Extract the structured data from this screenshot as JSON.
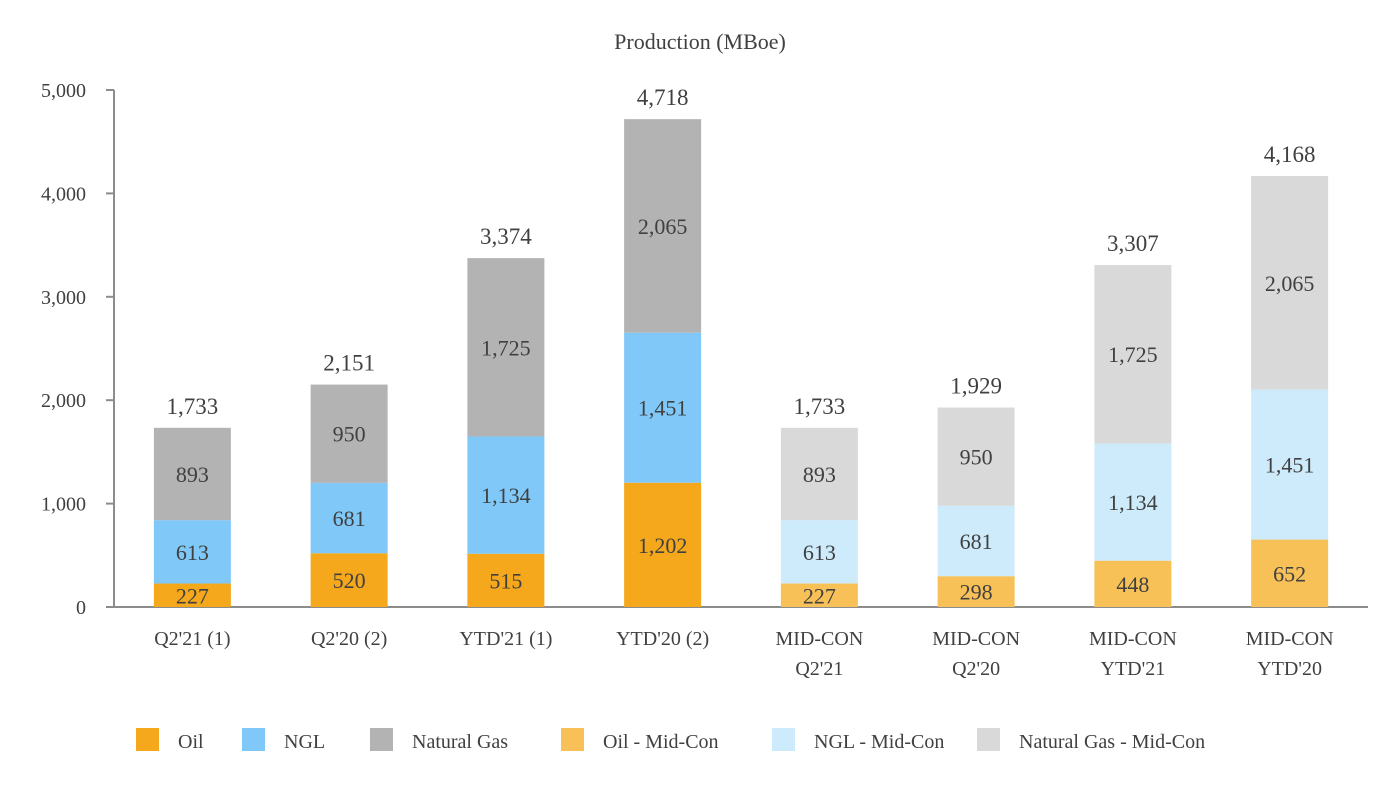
{
  "chart_data": {
    "type": "bar",
    "stacked": true,
    "title": "Production (MBoe)",
    "xlabel": "",
    "ylabel": "",
    "ylim": [
      0,
      5000
    ],
    "yticks": [
      0,
      1000,
      2000,
      3000,
      4000,
      5000
    ],
    "ytick_labels": [
      "0",
      "1,000",
      "2,000",
      "3,000",
      "4,000",
      "5,000"
    ],
    "grid": false,
    "legend_position": "bottom",
    "categories": [
      [
        "Q2'21 (1)"
      ],
      [
        "Q2'20 (2)"
      ],
      [
        "YTD'21 (1)"
      ],
      [
        "YTD'20 (2)"
      ],
      [
        "MID-CON",
        "Q2'21"
      ],
      [
        "MID-CON",
        "Q2'20"
      ],
      [
        "MID-CON",
        "YTD'21"
      ],
      [
        "MID-CON",
        "YTD'20"
      ]
    ],
    "series": [
      {
        "name": "Oil",
        "color": "#F5A81C",
        "values": [
          227,
          520,
          515,
          1202,
          null,
          null,
          null,
          null
        ],
        "labels": [
          "227",
          "520",
          "515",
          "1,202",
          null,
          null,
          null,
          null
        ]
      },
      {
        "name": "NGL",
        "color": "#7FC8F8",
        "values": [
          613,
          681,
          1134,
          1451,
          null,
          null,
          null,
          null
        ],
        "labels": [
          "613",
          "681",
          "1,134",
          "1,451",
          null,
          null,
          null,
          null
        ]
      },
      {
        "name": "Natural Gas",
        "color": "#B3B3B3",
        "values": [
          893,
          950,
          1725,
          2065,
          null,
          null,
          null,
          null
        ],
        "labels": [
          "893",
          "950",
          "1,725",
          "2,065",
          null,
          null,
          null,
          null
        ]
      },
      {
        "name": "Oil - Mid-Con",
        "color": "#F8C158",
        "values": [
          null,
          null,
          null,
          null,
          227,
          298,
          448,
          652
        ],
        "labels": [
          null,
          null,
          null,
          null,
          "227",
          "298",
          "448",
          "652"
        ]
      },
      {
        "name": "NGL - Mid-Con",
        "color": "#CDEBFA",
        "values": [
          null,
          null,
          null,
          null,
          613,
          681,
          1134,
          1451
        ],
        "labels": [
          null,
          null,
          null,
          null,
          "613",
          "681",
          "1,134",
          "1,451"
        ]
      },
      {
        "name": "Natural Gas - Mid-Con",
        "color": "#D9D9D9",
        "values": [
          null,
          null,
          null,
          null,
          893,
          950,
          1725,
          2065
        ],
        "labels": [
          null,
          null,
          null,
          null,
          "893",
          "950",
          "1,725",
          "2,065"
        ]
      }
    ],
    "totals": [
      1733,
      2151,
      3374,
      4718,
      1733,
      1929,
      3307,
      4168
    ],
    "total_labels": [
      "1,733",
      "2,151",
      "3,374",
      "4,718",
      "1,733",
      "1,929",
      "3,307",
      "4,168"
    ]
  }
}
